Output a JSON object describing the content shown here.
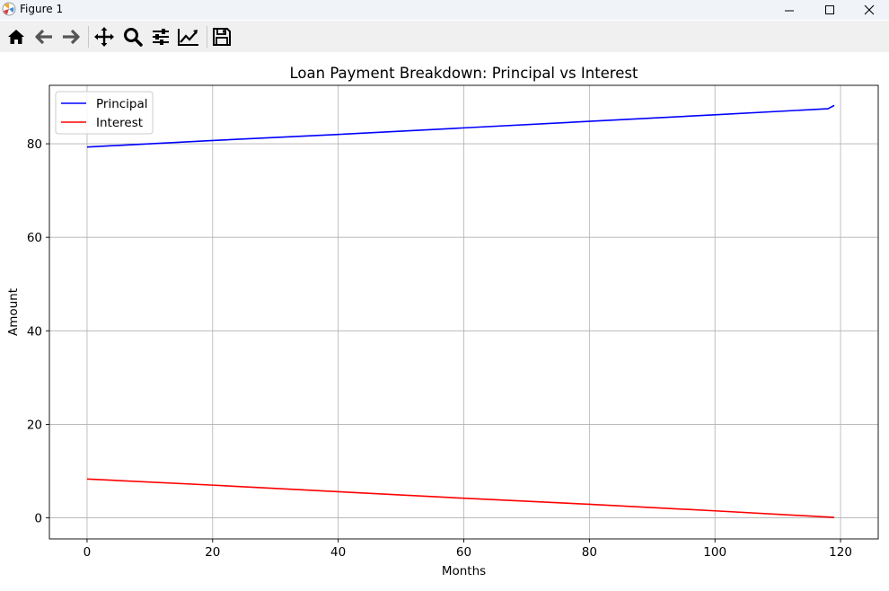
{
  "window": {
    "title": "Figure 1",
    "icons": [
      "matplotlib-logo",
      "minimize",
      "maximize",
      "close"
    ]
  },
  "toolbar": {
    "tools": [
      "home",
      "back",
      "forward",
      "pan",
      "zoom",
      "configure-subplots",
      "edit-axis",
      "save"
    ]
  },
  "chart_data": {
    "type": "line",
    "title": "Loan Payment Breakdown: Principal vs Interest",
    "xlabel": "Months",
    "ylabel": "Amount",
    "xlim": [
      -6,
      126
    ],
    "ylim": [
      -4.5,
      92.5
    ],
    "xticks": [
      0,
      20,
      40,
      60,
      80,
      100,
      120
    ],
    "yticks": [
      0,
      20,
      40,
      60,
      80
    ],
    "grid": true,
    "legend": "upper left",
    "series": [
      {
        "name": "Principal",
        "color": "#0000ff",
        "x": [
          0,
          20,
          40,
          60,
          80,
          100,
          118,
          119
        ],
        "y": [
          79.3,
          80.7,
          82.0,
          83.4,
          84.8,
          86.2,
          87.5,
          88.2
        ]
      },
      {
        "name": "Interest",
        "color": "#ff0000",
        "x": [
          0,
          20,
          40,
          60,
          80,
          100,
          119
        ],
        "y": [
          8.3,
          7.0,
          5.6,
          4.2,
          2.9,
          1.5,
          0.1
        ]
      }
    ]
  }
}
